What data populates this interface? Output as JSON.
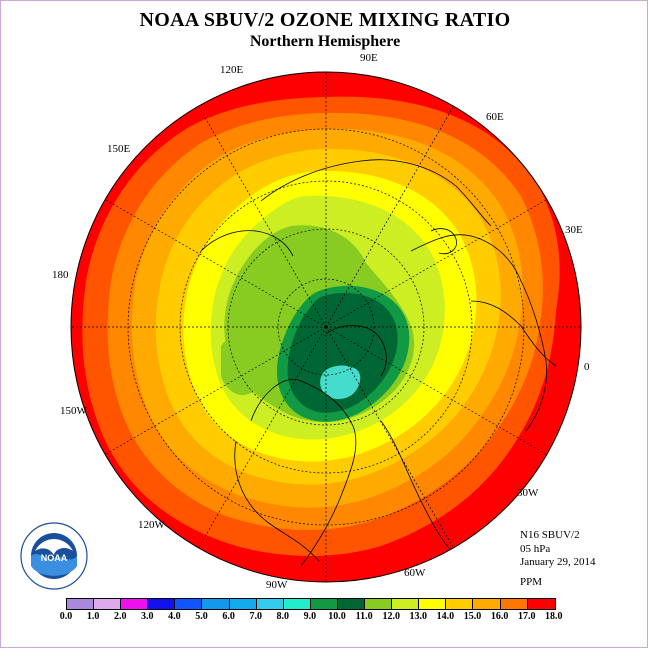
{
  "header": {
    "title": "NOAA SBUV/2 OZONE MIXING RATIO",
    "subtitle": "Northern Hemisphere"
  },
  "map": {
    "projection": "north-polar-stereographic",
    "longitude_labels": [
      "90E",
      "60E",
      "30E",
      "0",
      "30W",
      "60W",
      "90W",
      "120W",
      "150W",
      "180",
      "150E",
      "120E"
    ],
    "contour_colors": {
      "center_min": "#44ddcc",
      "dark_green": "#006633",
      "green": "#119944",
      "light_green": "#88cc22",
      "yellow_green": "#ccee22",
      "yellow": "#ffff00",
      "gold": "#ffcc00",
      "orange_light": "#ffaa00",
      "orange": "#ff8800",
      "orange_red": "#ff5500",
      "red": "#ff0000"
    },
    "approx_values_ppm": {
      "polar_minimum": 8.5,
      "polar_vortex": 10.0,
      "mid_latitudes": 12.5,
      "subtropics": 15.0,
      "tropics": 16.5
    }
  },
  "info": {
    "satellite": "N16 SBUV/2",
    "pressure": "05 hPa",
    "date": "January 29, 2014",
    "units": "PPM"
  },
  "colorbar": {
    "labels": [
      "0.0",
      "1.0",
      "2.0",
      "3.0",
      "4.0",
      "5.0",
      "6.0",
      "7.0",
      "8.0",
      "9.0",
      "10.0",
      "11.0",
      "12.0",
      "13.0",
      "14.0",
      "15.0",
      "16.0",
      "17.0",
      "18.0"
    ],
    "colors": [
      "#aa88dd",
      "#ddaaee",
      "#ee11ee",
      "#1111ee",
      "#1155ff",
      "#1199ee",
      "#11aaee",
      "#33ccee",
      "#22eecc",
      "#119944",
      "#006633",
      "#88cc22",
      "#ccee22",
      "#ffff00",
      "#ffcc00",
      "#ffaa00",
      "#ff7700",
      "#ff0000",
      "#885533"
    ]
  },
  "logo": {
    "text": "NOAA",
    "ring_text": "NATIONAL OCEANIC AND ATMOSPHERIC ADMINISTRATION · U.S. DEPARTMENT OF COMMERCE"
  }
}
